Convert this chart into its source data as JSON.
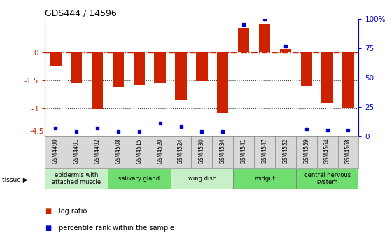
{
  "title": "GDS444 / 14596",
  "samples": [
    "GSM4490",
    "GSM4491",
    "GSM4492",
    "GSM4508",
    "GSM4515",
    "GSM4520",
    "GSM4524",
    "GSM4530",
    "GSM4534",
    "GSM4541",
    "GSM4547",
    "GSM4552",
    "GSM4559",
    "GSM4564",
    "GSM4568"
  ],
  "log_ratios": [
    -0.7,
    -1.6,
    -3.05,
    -1.85,
    -1.75,
    -1.65,
    -2.55,
    -1.55,
    -3.25,
    1.3,
    1.5,
    0.2,
    -1.8,
    -2.7,
    -3.0
  ],
  "percentile_ranks": [
    7,
    4,
    7,
    4,
    4,
    11,
    8,
    4,
    4,
    95,
    100,
    77,
    6,
    5,
    5
  ],
  "tissues": [
    {
      "label": "epidermis with\nattached muscle",
      "start": 0,
      "end": 3,
      "color": "#c8f0c8"
    },
    {
      "label": "salivary gland",
      "start": 3,
      "end": 6,
      "color": "#70dd70"
    },
    {
      "label": "wing disc",
      "start": 6,
      "end": 9,
      "color": "#c8f0c8"
    },
    {
      "label": "midgut",
      "start": 9,
      "end": 12,
      "color": "#70dd70"
    },
    {
      "label": "central nervous\nsystem",
      "start": 12,
      "end": 15,
      "color": "#70dd70"
    }
  ],
  "bar_color": "#cc2200",
  "dot_color": "#0000cc",
  "ylim_main": [
    -4.5,
    1.8
  ],
  "hline_zero_color": "#cc2200",
  "hline_dot_color": "#444444",
  "background_color": "#ffffff",
  "bar_width": 0.55
}
